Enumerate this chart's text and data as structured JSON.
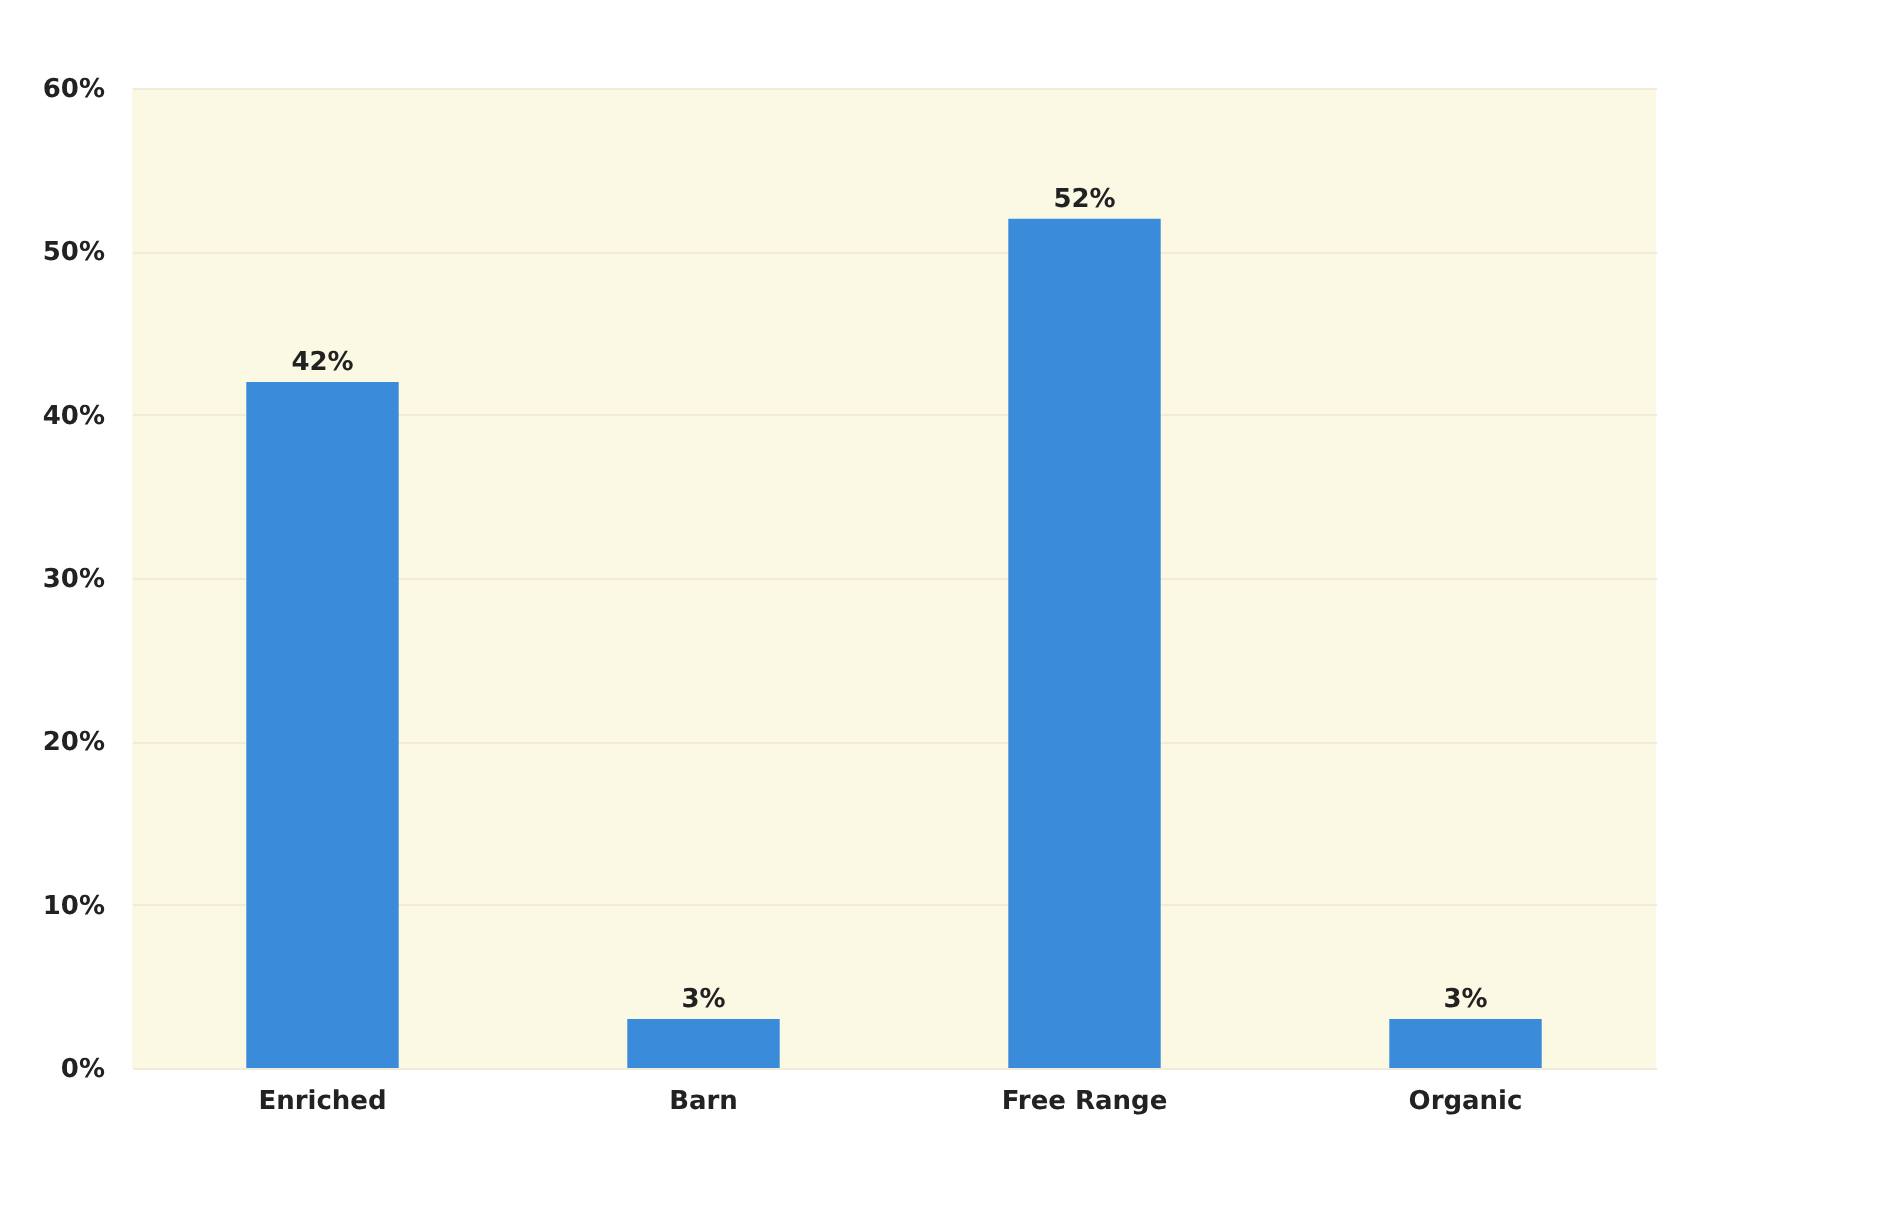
{
  "chart_data": {
    "type": "bar",
    "categories": [
      "Enriched",
      "Barn",
      "Free Range",
      "Organic"
    ],
    "values": [
      42,
      3,
      52,
      3
    ],
    "color": "#3b8bdb",
    "value_labels": [
      "42%",
      "3%",
      "52%",
      "3%"
    ],
    "ylim": [
      0,
      60
    ],
    "yticks": [
      {
        "value": 0,
        "label": "0%"
      },
      {
        "value": 10,
        "label": "10%"
      },
      {
        "value": 20,
        "label": "20%"
      },
      {
        "value": 30,
        "label": "30%"
      },
      {
        "value": 40,
        "label": "40%"
      },
      {
        "value": 50,
        "label": "50%"
      },
      {
        "value": 60,
        "label": "60%"
      }
    ],
    "grid": "y"
  }
}
